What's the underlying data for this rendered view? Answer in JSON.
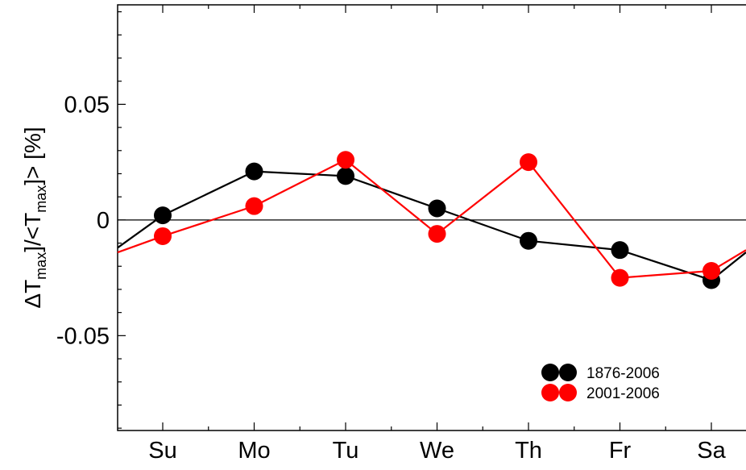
{
  "chart_data": {
    "type": "line",
    "title": "",
    "xlabel": "",
    "ylabel": {
      "delta": "Δ",
      "T": "T",
      "sub": "max",
      "mid": "]/<",
      "end": "]> [%]"
    },
    "categories": [
      "Su",
      "Mo",
      "Tu",
      "We",
      "Th",
      "Fr",
      "Sa"
    ],
    "x_range": [
      -0.5,
      6.5
    ],
    "ylim": [
      -0.091,
      0.093
    ],
    "yticks": [
      {
        "value": 0.05,
        "label": "0.05"
      },
      {
        "value": 0,
        "label": "0"
      },
      {
        "value": -0.05,
        "label": "-0.05"
      }
    ],
    "zero_line": true,
    "grid": false,
    "legend_position": "bottom-right",
    "series": [
      {
        "name": "1876-2006",
        "color": "#000000",
        "values": [
          0.002,
          0.021,
          0.019,
          0.005,
          -0.009,
          -0.013,
          -0.026
        ],
        "edge_left": -0.012,
        "edge_right": -0.014
      },
      {
        "name": "2001-2006",
        "color": "#ff0000",
        "values": [
          -0.007,
          0.006,
          0.026,
          -0.006,
          0.025,
          -0.025,
          -0.022
        ],
        "edge_left": -0.014,
        "edge_right": -0.013
      }
    ]
  }
}
